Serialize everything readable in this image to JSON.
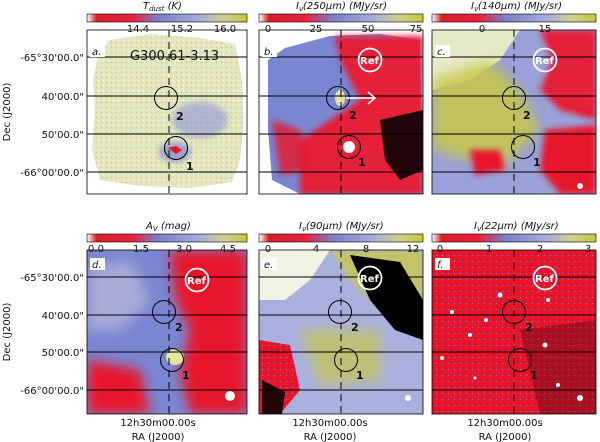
{
  "figure": {
    "source_name": "G300.61-3.13",
    "panel_titles": [
      "T_dust (K)",
      "I_ν(250μm) (MJy/sr)",
      "I_ν(140μm) (MJy/sr)",
      "A_V (mag)",
      "I_ν(90μm) (MJy/sr)",
      "I_ν(22μm) (MJy/sr)"
    ],
    "panel_title_parts": [
      {
        "base": "T",
        "sub": "dust",
        "unit": " (K)"
      },
      {
        "base": "I",
        "sub": "ν",
        "mid": "(250μm)",
        "unit": " (MJy/sr)"
      },
      {
        "base": "I",
        "sub": "ν",
        "mid": "(140μm)",
        "unit": " (MJy/sr)"
      },
      {
        "base": "A",
        "sub": "V",
        "unit": " (mag)"
      },
      {
        "base": "I",
        "sub": "ν",
        "mid": "(90μm)",
        "unit": " (MJy/sr)"
      },
      {
        "base": "I",
        "sub": "ν",
        "mid": "(22μm)",
        "unit": " (MJy/sr)"
      }
    ],
    "colorbar_ticks": [
      [
        "14.4",
        "15.2",
        "16.0"
      ],
      [
        "0",
        "25",
        "50",
        "75"
      ],
      [
        "0",
        "15"
      ],
      [
        "0.0",
        "1.5",
        "3.0",
        "4.5"
      ],
      [
        "0",
        "4",
        "8",
        "12"
      ],
      [
        "0",
        "1",
        "2",
        "3"
      ]
    ],
    "panel_letters": [
      "a.",
      "b.",
      "c.",
      "d.",
      "e.",
      "f."
    ],
    "dec_ticks": [
      "-65°30'00.0\"",
      "40'00.0\"",
      "50'00.0\"",
      "-66°00'00.0\""
    ],
    "dec_label": "Dec (J2000)",
    "ra_tick": "12h30m00.00s",
    "ra_label": "RA (J2000)",
    "ref_label": "Ref",
    "circle_labels": [
      "1",
      "2"
    ]
  },
  "colors": {
    "red": "#e8142a",
    "blue": "#7b86d2",
    "pale": "#d8dfaa",
    "yellow": "#c8c84a",
    "black": "#000000"
  }
}
